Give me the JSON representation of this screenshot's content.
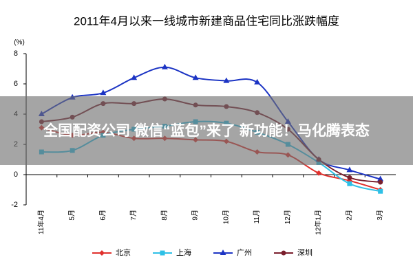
{
  "chart_data": {
    "type": "line",
    "title": "2011年4月以来一线城市新建商品住宅同比涨跌幅度",
    "y_label": "(%)",
    "categories": [
      "11年4月",
      "5月",
      "6月",
      "7月",
      "8月",
      "9月",
      "10月",
      "11月",
      "12月",
      "12年1月",
      "2月",
      "3月"
    ],
    "ylim": [
      -2,
      8
    ],
    "yticks": [
      -2,
      0,
      2,
      4,
      6,
      8
    ],
    "grid": false,
    "legend": "bottom",
    "series": [
      {
        "name": "北京",
        "color": "#e0302c",
        "marker": "diamond",
        "values": [
          3.1,
          2.6,
          2.8,
          2.4,
          2.4,
          2.3,
          2.2,
          1.5,
          1.3,
          0.1,
          -0.4,
          -1.0
        ]
      },
      {
        "name": "上海",
        "color": "#2ec0e6",
        "marker": "square",
        "values": [
          1.5,
          1.6,
          2.6,
          3.0,
          3.2,
          3.5,
          3.4,
          2.8,
          2.0,
          0.8,
          -0.6,
          -1.1
        ]
      },
      {
        "name": "广州",
        "color": "#1c34c4",
        "marker": "triangle",
        "values": [
          4.0,
          5.1,
          5.4,
          6.4,
          7.1,
          6.4,
          6.2,
          6.1,
          3.5,
          1.0,
          0.3,
          -0.3
        ]
      },
      {
        "name": "深圳",
        "color": "#7a1e2c",
        "marker": "circle",
        "values": [
          3.5,
          3.8,
          4.7,
          4.7,
          5.0,
          4.6,
          4.5,
          4.1,
          3.0,
          1.0,
          -0.2,
          -0.5
        ]
      }
    ]
  },
  "overlay": {
    "text": "全国配资公司 微信“蓝包”来了 新功能！马化腾表态"
  }
}
